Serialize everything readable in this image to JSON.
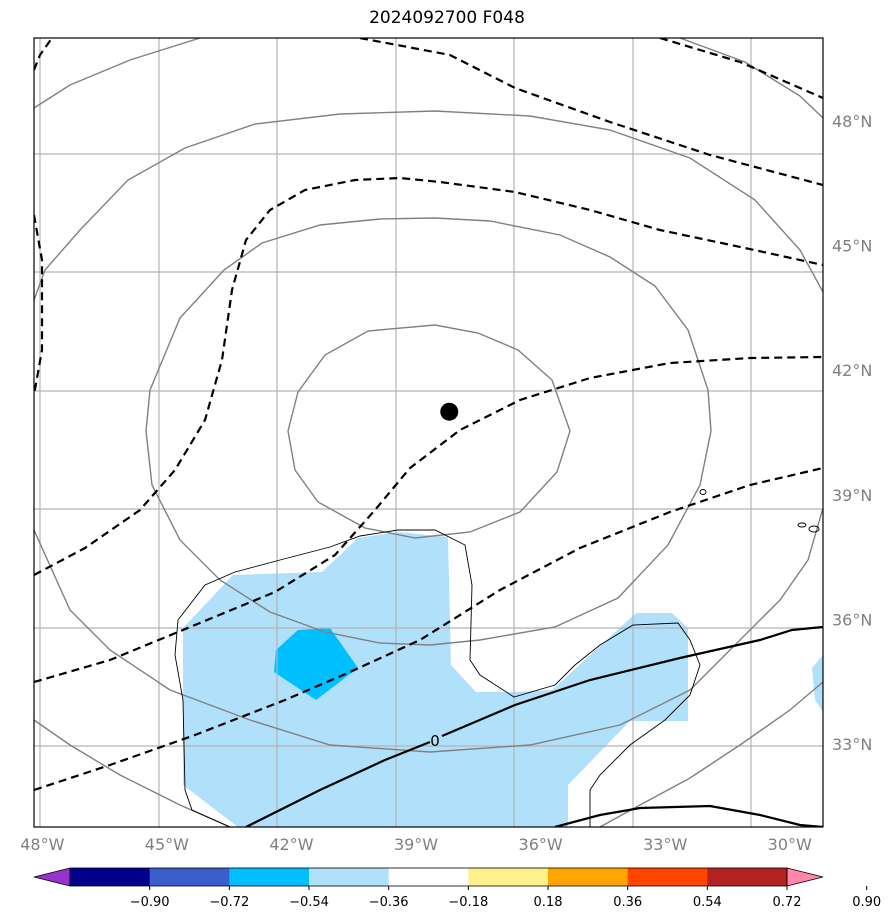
{
  "title": "2024092700 F048",
  "map": {
    "lon_range": [
      -48.2,
      -29.2
    ],
    "lat_range": [
      31.0,
      50.0
    ],
    "lon_ticks": [
      {
        "value": -48,
        "label": "48°W"
      },
      {
        "value": -45,
        "label": "45°W"
      },
      {
        "value": -42,
        "label": "42°W"
      },
      {
        "value": -39,
        "label": "39°W"
      },
      {
        "value": -36,
        "label": "36°W"
      },
      {
        "value": -33,
        "label": "33°W"
      },
      {
        "value": -30,
        "label": "30°W"
      }
    ],
    "lat_ticks": [
      {
        "value": 48,
        "label": "48°N"
      },
      {
        "value": 45,
        "label": "45°N"
      },
      {
        "value": 42,
        "label": "42°N"
      },
      {
        "value": 39,
        "label": "39°N"
      },
      {
        "value": 36,
        "label": "36°N"
      },
      {
        "value": 33,
        "label": "33°N"
      }
    ],
    "gridlines": true,
    "center_marker": {
      "lon": -38.2,
      "lat": 41.0
    },
    "zero_contour_label": "0"
  },
  "colorbar": {
    "levels": [
      "−0.90",
      "−0.72",
      "−0.54",
      "−0.36",
      "−0.18",
      "0.18",
      "0.36",
      "0.54",
      "0.72",
      "0.90"
    ],
    "colors": [
      "#9932cc",
      "#00008b",
      "#3a5fcd",
      "#00bfff",
      "#b0e0fa",
      "#ffffff",
      "#fff08c",
      "#ffa500",
      "#ff4500",
      "#b22222",
      "#ff88aa"
    ],
    "extend": "both"
  }
}
